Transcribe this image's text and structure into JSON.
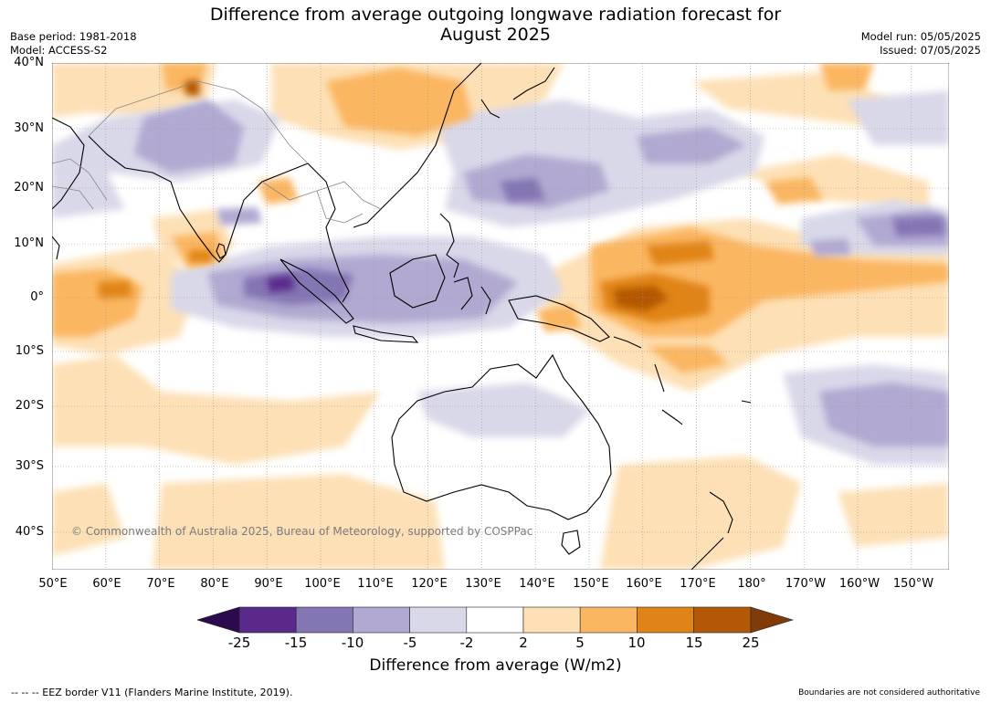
{
  "title_line1": "Difference from average outgoing longwave radiation forecast for",
  "title_line2": "August 2025",
  "base_period": "Base period: 1981-2018",
  "model": "Model: ACCESS-S2",
  "model_run": "Model run: 05/05/2025",
  "issued": "Issued: 07/05/2025",
  "lat_ticks": [
    "40°N",
    "30°N",
    "20°N",
    "10°N",
    "0°",
    "10°S",
    "20°S",
    "30°S",
    "40°S"
  ],
  "lon_ticks": [
    "50°E",
    "60°E",
    "70°E",
    "80°E",
    "90°E",
    "100°E",
    "110°E",
    "120°E",
    "130°E",
    "140°E",
    "150°E",
    "160°E",
    "170°E",
    "180°",
    "170°W",
    "160°W",
    "150°W"
  ],
  "copyright": "© Commonwealth of Australia 2025, Bureau of Meteorology, supported by COSPPac",
  "legend": {
    "title": "Difference from average (W/m2)",
    "bounds": [
      "-25",
      "-15",
      "-10",
      "-5",
      "-2",
      "2",
      "5",
      "10",
      "15",
      "25"
    ],
    "colors": [
      "#2d0a4e",
      "#5a2a8a",
      "#8475b3",
      "#b1a9d1",
      "#d9d8e9",
      "#ffffff",
      "#fde0b6",
      "#fbb662",
      "#e08419",
      "#b35806",
      "#7f3b08"
    ]
  },
  "footer_left": "--  --  -- EEZ border V11 (Flanders Marine Institute, 2019).",
  "footer_right": "Boundaries are not considered authoritative"
}
